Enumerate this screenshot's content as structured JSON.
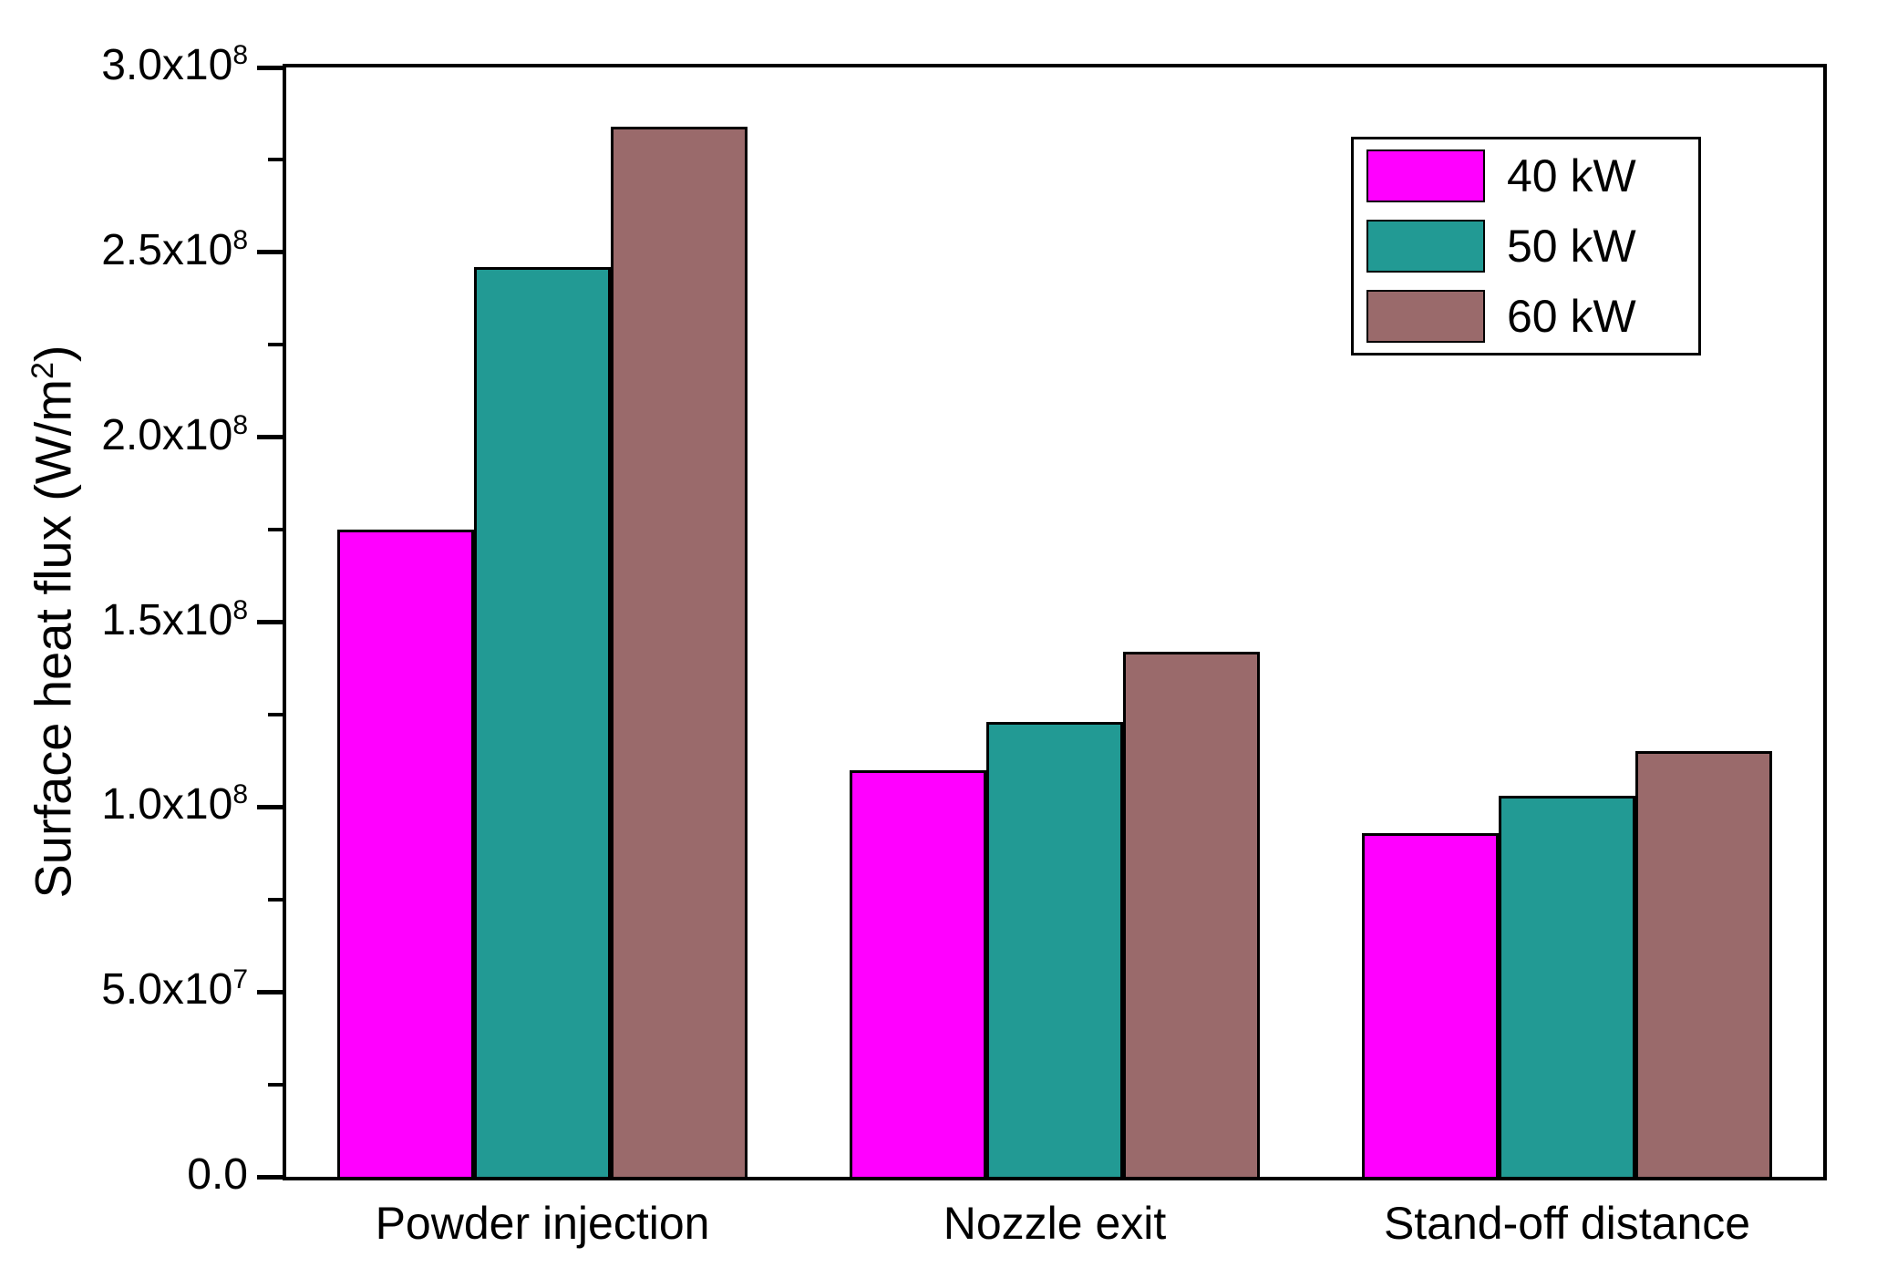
{
  "figure": {
    "background": "#FFFFFF",
    "axis_color": "#000000"
  },
  "chart_data": {
    "type": "bar",
    "title": "",
    "categories": [
      "Powder injection",
      "Nozzle exit",
      "Stand-off distance"
    ],
    "series": [
      {
        "name": "40 kW",
        "color": "#FF00FF",
        "values": [
          175000000,
          110000000,
          93000000
        ]
      },
      {
        "name": "50 kW",
        "color": "#229A94",
        "values": [
          246000000,
          123000000,
          103000000
        ]
      },
      {
        "name": "60 kW",
        "color": "#9A6A6B",
        "values": [
          284000000,
          142000000,
          115000000
        ]
      }
    ],
    "xlabel": "",
    "ylabel": {
      "pre": "Surface heat flux (W/m",
      "sup": "2",
      "post": ")"
    },
    "ylim": [
      0,
      300000000
    ],
    "grid": false,
    "bar_outline": "#000000",
    "legend": {
      "position": "top-right"
    },
    "y_major_ticks": [
      {
        "value": 0,
        "base": "0.0",
        "exp": ""
      },
      {
        "value": 50000000,
        "base": "5.0x10",
        "exp": "7"
      },
      {
        "value": 100000000,
        "base": "1.0x10",
        "exp": "8"
      },
      {
        "value": 150000000,
        "base": "1.5x10",
        "exp": "8"
      },
      {
        "value": 200000000,
        "base": "2.0x10",
        "exp": "8"
      },
      {
        "value": 250000000,
        "base": "2.5x10",
        "exp": "8"
      },
      {
        "value": 300000000,
        "base": "3.0x10",
        "exp": "8"
      }
    ],
    "y_minor_step": 25000000
  }
}
